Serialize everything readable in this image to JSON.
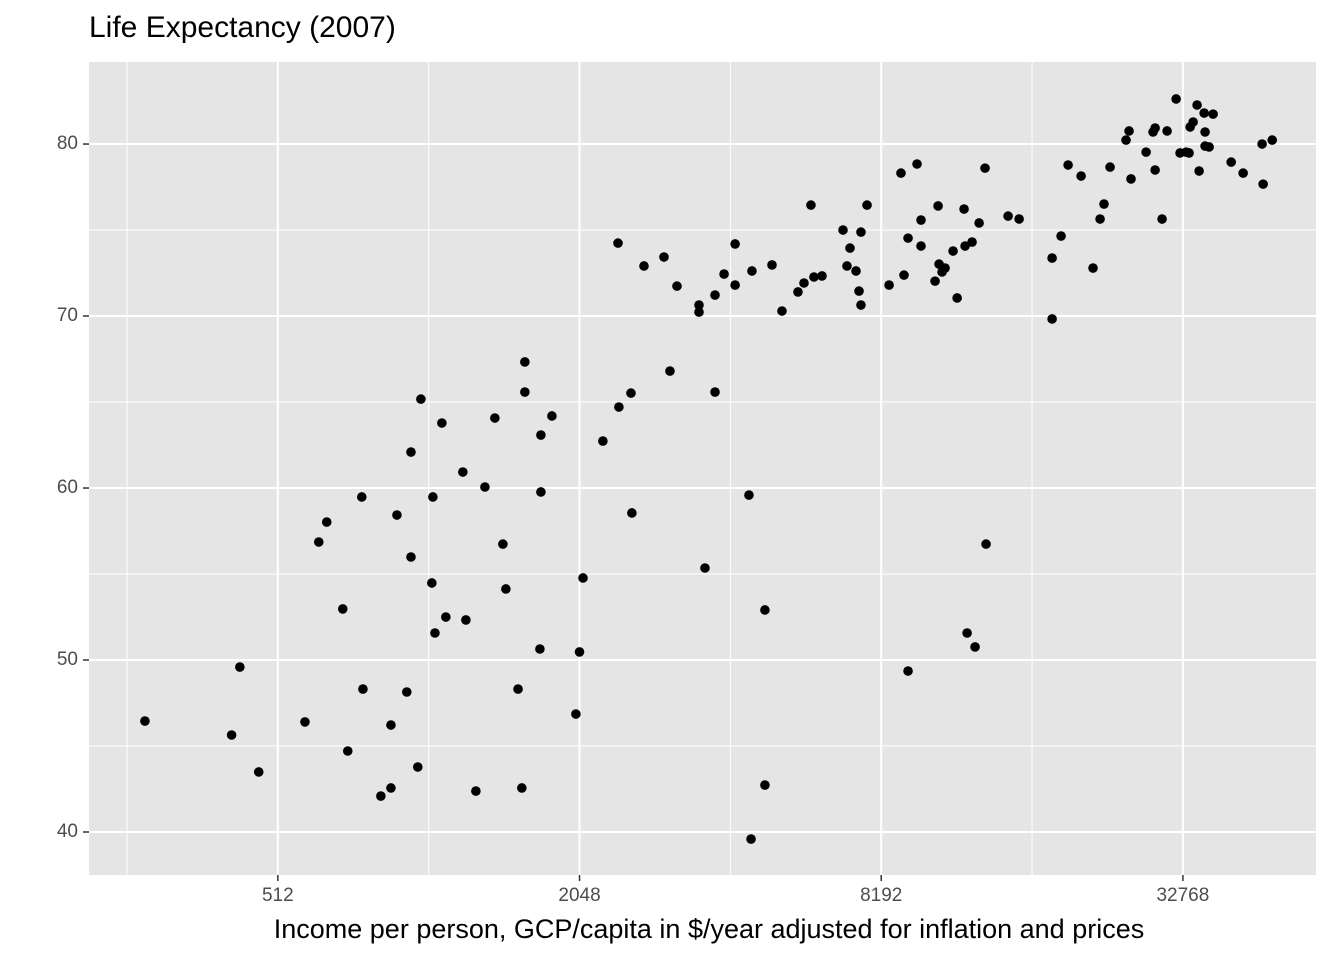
{
  "chart_data": {
    "type": "scatter",
    "title": "Life Expectancy (2007)",
    "x_label": "Income per person, GCP/capita in $/year adjusted for inflation and prices",
    "x": [
      278,
      414,
      430,
      469,
      580,
      618,
      641,
      690,
      706,
      753,
      757,
      822,
      861,
      861,
      885,
      926,
      944,
      944,
      974,
      988,
      1039,
      1044,
      1054,
      1088,
      1108,
      1198,
      1215,
      1272,
      1326,
      1388,
      1440,
      1460,
      1544,
      1571,
      1593,
      1593,
      1707,
      1715,
      1715,
      1804,
      2014,
      2048,
      2081,
      2280,
      2444,
      2454,
      2594,
      2605,
      2754,
      3019,
      3103,
      3205,
      3546,
      3546,
      3645,
      3817,
      3817,
      3979,
      4186,
      4186,
      4461,
      4504,
      4523,
      4801,
      4801,
      4959,
      5192,
      5588,
      5745,
      5931,
      6014,
      6240,
      6873,
      6999,
      7097,
      7296,
      7398,
      7464,
      7464,
      7675,
      8494,
      8971,
      9096,
      9267,
      9267,
      9657,
      9836,
      9836,
      10491,
      10638,
      10686,
      10834,
      10985,
      11397,
      11611,
      11987,
      12043,
      12155,
      12436,
      12608,
      12845,
      13200,
      13261,
      14675,
      15437,
      17965,
      17965,
      18720,
      19335,
      20525,
      21680,
      22395,
      22803,
      23445,
      25232,
      25585,
      25817,
      27668,
      28565,
      28840,
      28840,
      29776,
      30468,
      31760,
      32341,
      33248,
      33710,
      33872,
      34344,
      35298,
      36128,
      36280,
      36280,
      36961,
      37641,
      34969,
      40904,
      43214,
      47150,
      47370,
      49391
    ],
    "values": [
      46.45,
      45.64,
      49.59,
      43.49,
      46.4,
      56.86,
      58.02,
      52.97,
      44.71,
      59.48,
      48.31,
      42.09,
      42.56,
      46.22,
      58.43,
      48.14,
      62.09,
      55.99,
      43.78,
      65.17,
      54.48,
      59.48,
      51.57,
      63.78,
      52.5,
      60.93,
      52.33,
      42.38,
      60.06,
      64.07,
      56.74,
      54.13,
      48.31,
      42.56,
      67.33,
      65.58,
      50.64,
      63.08,
      59.77,
      64.19,
      46.86,
      50.47,
      54.77,
      62.73,
      74.24,
      64.71,
      65.52,
      58.55,
      72.91,
      73.43,
      66.8,
      71.74,
      70.64,
      70.23,
      55.35,
      71.22,
      65.58,
      72.44,
      74.19,
      71.8,
      59.59,
      39.59,
      72.62,
      52.91,
      42.73,
      72.97,
      70.29,
      71.4,
      71.92,
      76.45,
      72.27,
      72.33,
      75.0,
      72.91,
      73.95,
      72.62,
      71.45,
      74.88,
      70.64,
      76.45,
      71.8,
      78.31,
      72.38,
      74.53,
      49.36,
      78.84,
      75.58,
      74.07,
      72.03,
      76.4,
      73.02,
      72.56,
      72.79,
      73.78,
      71.05,
      76.22,
      74.07,
      51.57,
      74.3,
      50.76,
      75.41,
      78.6,
      56.74,
      75.81,
      75.64,
      73.37,
      69.83,
      74.65,
      78.78,
      78.14,
      72.79,
      75.64,
      76.51,
      78.66,
      80.23,
      80.76,
      77.97,
      79.53,
      80.7,
      78.49,
      80.93,
      75.64,
      80.76,
      82.62,
      79.48,
      79.53,
      79.48,
      80.99,
      81.28,
      78.43,
      81.8,
      80.7,
      79.88,
      79.83,
      81.74,
      82.27,
      78.95,
      78.31,
      80.0,
      77.67,
      80.23
    ],
    "color": "#000000",
    "xlim": [
      215,
      60400
    ],
    "ylim": [
      37.5,
      84.77
    ],
    "xticks": [
      512,
      2048,
      8192,
      32768
    ],
    "yticks": [
      40,
      50,
      60,
      70,
      80
    ],
    "x_minor_ticks": [
      256,
      1024,
      4096,
      16384
    ],
    "y_minor_ticks": [
      45,
      55,
      65,
      75
    ],
    "x_log_base": 2,
    "grid": true,
    "background": "#e5e5e5"
  }
}
